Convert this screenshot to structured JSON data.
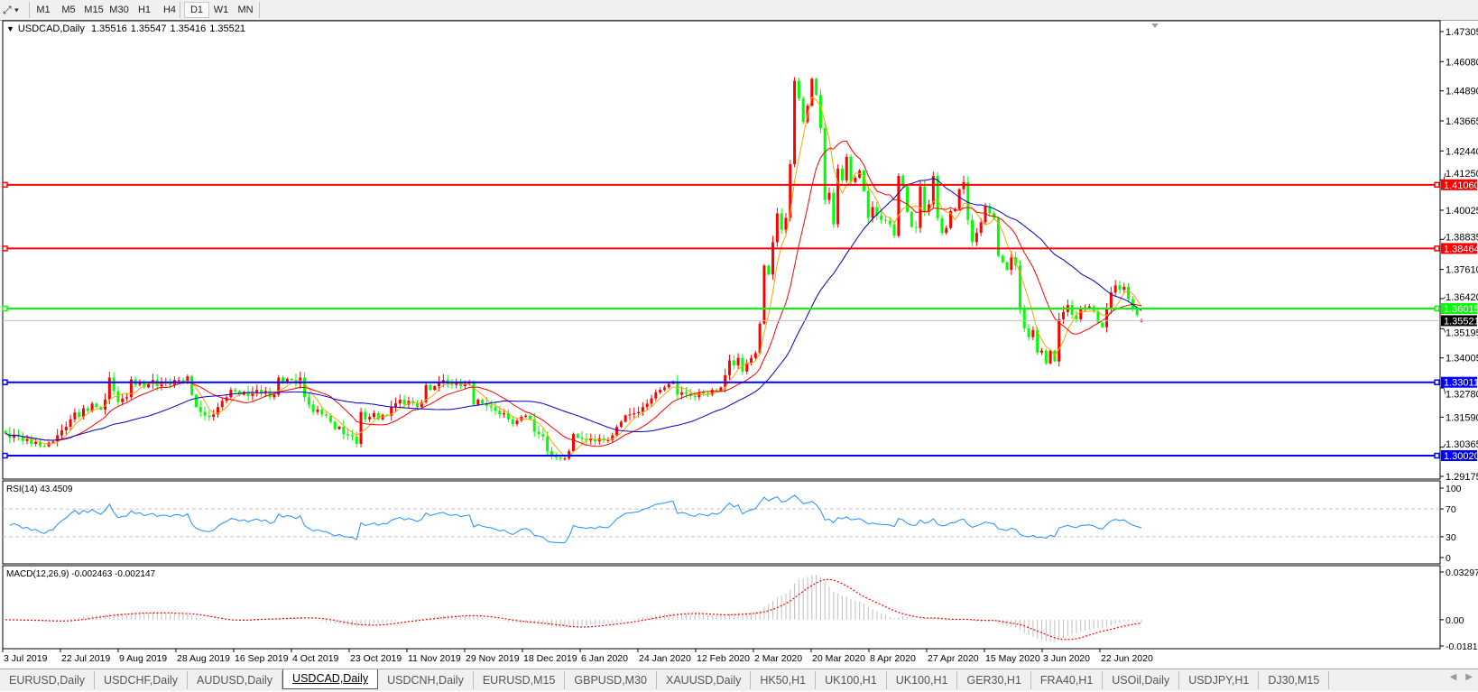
{
  "toolbar": {
    "cursor_icon": "crosshair-pointer-icon",
    "timeframes": [
      "M1",
      "M5",
      "M15",
      "M30",
      "H1",
      "H4",
      "D1",
      "W1",
      "MN"
    ],
    "active_timeframe": "D1"
  },
  "header": {
    "symbol": "USDCAD,Daily",
    "open": "1.35516",
    "high": "1.35547",
    "low": "1.35416",
    "close": "1.35521"
  },
  "indicators": {
    "rsi_label": "RSI(14) 43.4509",
    "macd_label": "MACD(12,26,9) -0.002463 -0.002147"
  },
  "tabs": [
    {
      "label": "EURUSD,Daily"
    },
    {
      "label": "USDCHF,Daily"
    },
    {
      "label": "AUDUSD,Daily"
    },
    {
      "label": "USDCAD,Daily",
      "active": true
    },
    {
      "label": "USDCNH,Daily"
    },
    {
      "label": "EURUSD,M15"
    },
    {
      "label": "GBPUSD,M30"
    },
    {
      "label": "XAUUSD,Daily"
    },
    {
      "label": "HK50,H1"
    },
    {
      "label": "UK100,H1"
    },
    {
      "label": "UK100,H1"
    },
    {
      "label": "GER30,H1"
    },
    {
      "label": "FRA40,H1"
    },
    {
      "label": "USOil,Daily"
    },
    {
      "label": "USDJPY,H1"
    },
    {
      "label": "DJ30,M15"
    }
  ],
  "chart_data": {
    "type": "candlestick",
    "symbol": "USDCAD",
    "timeframe": "Daily",
    "colors": {
      "bull": "#ff0000",
      "bear": "#00ff00",
      "ma_fast": "#ffa500",
      "ma_mid": "#ff0000",
      "ma_slow": "#0000cd",
      "rsi": "#1e90ff",
      "macd_hist": "#c0c0c0",
      "macd_signal": "#ff0000"
    },
    "ylim": [
      1.29175,
      1.47305
    ],
    "price_ticks": [
      "1.47305",
      "1.46080",
      "1.44890",
      "1.43665",
      "1.42440",
      "1.41250",
      "1.40025",
      "1.38835",
      "1.37610",
      "1.36420",
      "1.35195",
      "1.34005",
      "1.32780",
      "1.31590",
      "1.30365",
      "1.29175"
    ],
    "date_ticks": [
      "3 Jul 2019",
      "22 Jul 2019",
      "9 Aug 2019",
      "28 Aug 2019",
      "16 Sep 2019",
      "4 Oct 2019",
      "23 Oct 2019",
      "11 Nov 2019",
      "29 Nov 2019",
      "18 Dec 2019",
      "6 Jan 2020",
      "24 Jan 2020",
      "12 Feb 2020",
      "2 Mar 2020",
      "20 Mar 2020",
      "8 Apr 2020",
      "27 Apr 2020",
      "15 May 2020",
      "3 Jun 2020",
      "22 Jun 2020"
    ],
    "hlines": [
      {
        "price": "1.41060",
        "color": "#ff0000"
      },
      {
        "price": "1.38464",
        "color": "#ff0000"
      },
      {
        "price": "1.36015",
        "color": "#00ff00"
      },
      {
        "price": "1.33011",
        "color": "#0000ff"
      },
      {
        "price": "1.30020",
        "color": "#0000ff"
      }
    ],
    "current_price": "1.35521",
    "close": [
      1.3093,
      1.3075,
      1.3088,
      1.308,
      1.3062,
      1.307,
      1.305,
      1.3058,
      1.3042,
      1.304,
      1.3055,
      1.306,
      1.3085,
      1.3105,
      1.312,
      1.315,
      1.3178,
      1.316,
      1.3195,
      1.3185,
      1.3214,
      1.32,
      1.319,
      1.323,
      1.332,
      1.3265,
      1.322,
      1.3235,
      1.324,
      1.3313,
      1.329,
      1.3305,
      1.328,
      1.3295,
      1.331,
      1.3285,
      1.33,
      1.33,
      1.329,
      1.331,
      1.331,
      1.33,
      1.3325,
      1.325,
      1.32,
      1.318,
      1.3165,
      1.316,
      1.317,
      1.32,
      1.3225,
      1.324,
      1.327,
      1.3265,
      1.325,
      1.3262,
      1.3245,
      1.326,
      1.327,
      1.3255,
      1.3265,
      1.324,
      1.325,
      1.332,
      1.33,
      1.3315,
      1.331,
      1.3295,
      1.332,
      1.324,
      1.321,
      1.318,
      1.319,
      1.317,
      1.3165,
      1.314,
      1.311,
      1.312,
      1.309,
      1.3085,
      1.308,
      1.305,
      1.318,
      1.315,
      1.316,
      1.3175,
      1.315,
      1.3168,
      1.3165,
      1.32,
      1.3215,
      1.323,
      1.321,
      1.3225,
      1.3215,
      1.32,
      1.322,
      1.329,
      1.327,
      1.3285,
      1.33,
      1.331,
      1.3295,
      1.329,
      1.33,
      1.3285,
      1.3295,
      1.33,
      1.321,
      1.323,
      1.3215,
      1.3205,
      1.32,
      1.3185,
      1.317,
      1.3175,
      1.315,
      1.313,
      1.3145,
      1.316,
      1.3165,
      1.315,
      1.31,
      1.309,
      1.308,
      1.302,
      1.3,
      1.2995,
      1.299,
      1.299,
      1.302,
      1.309,
      1.3075,
      1.307,
      1.3064,
      1.307,
      1.306,
      1.3072,
      1.3065,
      1.3065,
      1.3085,
      1.3119,
      1.314,
      1.3166,
      1.317,
      1.3175,
      1.318,
      1.32,
      1.3214,
      1.3235,
      1.326,
      1.327,
      1.328,
      1.3295,
      1.3305,
      1.325,
      1.326,
      1.3255,
      1.3245,
      1.324,
      1.326,
      1.3255,
      1.325,
      1.327,
      1.3265,
      1.328,
      1.333,
      1.339,
      1.337,
      1.34,
      1.3345,
      1.338,
      1.34,
      1.342,
      1.354,
      1.3777,
      1.374,
      1.3872,
      1.3989,
      1.3923,
      1.3971,
      1.419,
      1.453,
      1.4457,
      1.4362,
      1.4428,
      1.4538,
      1.4472,
      1.4337,
      1.4044,
      1.4073,
      1.3945,
      1.4172,
      1.4124,
      1.422,
      1.4117,
      1.4135,
      1.4164,
      1.408,
      1.3971,
      1.4015,
      1.398,
      1.3963,
      1.396,
      1.3945,
      1.3898,
      1.4142,
      1.41,
      1.3996,
      1.3934,
      1.393,
      1.4099,
      1.3996,
      1.4026,
      1.4142,
      1.397,
      1.391,
      1.393,
      1.3999,
      1.4007,
      1.4088,
      1.4117,
      1.3963,
      1.3872,
      1.391,
      1.3953,
      1.4018,
      1.399,
      1.397,
      1.3817,
      1.379,
      1.3759,
      1.381,
      1.3777,
      1.3598,
      1.3521,
      1.3485,
      1.3514,
      1.3422,
      1.343,
      1.3378,
      1.343,
      1.3386,
      1.3558,
      1.3587,
      1.3616,
      1.3576,
      1.3558,
      1.3598,
      1.3605,
      1.361,
      1.359,
      1.3544,
      1.3525,
      1.3598,
      1.3667,
      1.3696,
      1.3678,
      1.369,
      1.364,
      1.36,
      1.3575,
      1.35521
    ],
    "rsi": {
      "period": 14,
      "levels": [
        70,
        30
      ],
      "ticks": [
        "100",
        "70",
        "30",
        "0"
      ],
      "last": 43.4509
    },
    "macd": {
      "fast": 12,
      "slow": 26,
      "signal": 9,
      "ticks": [
        "0.032972",
        "0.00",
        "-0.018154"
      ],
      "ylim": [
        -0.018154,
        0.032972
      ],
      "last_main": -0.002463,
      "last_signal": -0.002147
    }
  }
}
